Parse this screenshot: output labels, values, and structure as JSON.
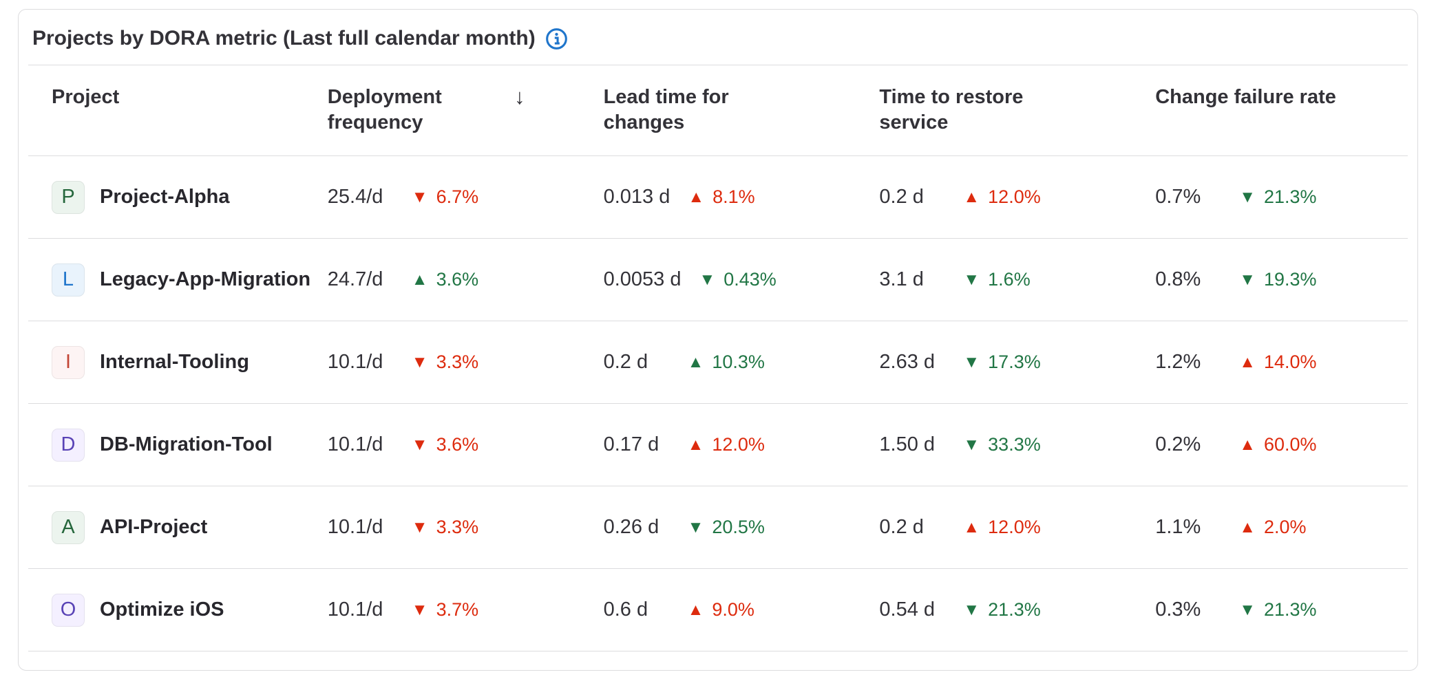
{
  "colors": {
    "good": "#217645",
    "bad": "#dd2b0e",
    "info": "#1f75cb"
  },
  "icons": {
    "up": "▲",
    "down": "▼",
    "sort_desc": "↓",
    "info": "circled-i"
  },
  "card": {
    "title": "Projects by DORA metric (Last full calendar month)"
  },
  "table": {
    "headers": [
      {
        "label": "Project",
        "sortable": true
      },
      {
        "label": "Deployment frequency",
        "sortable": true,
        "sorted": "desc"
      },
      {
        "label": "Lead time for changes",
        "sortable": true
      },
      {
        "label": "Time to restore service",
        "sortable": true
      },
      {
        "label": "Change failure rate",
        "sortable": true
      }
    ],
    "rows": [
      {
        "project": {
          "initial": "P",
          "name": "Project-Alpha",
          "avatar_bg": "#ecf4ee",
          "avatar_fg": "#24663b"
        },
        "metrics": [
          {
            "value": "25.4/d",
            "arrow": "down",
            "change": "6.7%",
            "sentiment": "bad"
          },
          {
            "value": "0.013 d",
            "arrow": "up",
            "change": "8.1%",
            "sentiment": "bad"
          },
          {
            "value": "0.2 d",
            "arrow": "up",
            "change": "12.0%",
            "sentiment": "bad"
          },
          {
            "value": "0.7%",
            "arrow": "down",
            "change": "21.3%",
            "sentiment": "good"
          }
        ]
      },
      {
        "project": {
          "initial": "L",
          "name": "Legacy-App-Migration",
          "avatar_bg": "#e9f3fc",
          "avatar_fg": "#1f75cb"
        },
        "metrics": [
          {
            "value": "24.7/d",
            "arrow": "up",
            "change": "3.6%",
            "sentiment": "good"
          },
          {
            "value": "0.0053 d",
            "arrow": "down",
            "change": "0.43%",
            "sentiment": "good"
          },
          {
            "value": "3.1 d",
            "arrow": "down",
            "change": "1.6%",
            "sentiment": "good"
          },
          {
            "value": "0.8%",
            "arrow": "down",
            "change": "19.3%",
            "sentiment": "good"
          }
        ]
      },
      {
        "project": {
          "initial": "I",
          "name": "Internal-Tooling",
          "avatar_bg": "#fdf4f4",
          "avatar_fg": "#c24535"
        },
        "metrics": [
          {
            "value": "10.1/d",
            "arrow": "down",
            "change": "3.3%",
            "sentiment": "bad"
          },
          {
            "value": "0.2 d",
            "arrow": "up",
            "change": "10.3%",
            "sentiment": "good"
          },
          {
            "value": "2.63 d",
            "arrow": "down",
            "change": "17.3%",
            "sentiment": "good"
          },
          {
            "value": "1.2%",
            "arrow": "up",
            "change": "14.0%",
            "sentiment": "bad"
          }
        ]
      },
      {
        "project": {
          "initial": "D",
          "name": "DB-Migration-Tool",
          "avatar_bg": "#f4f0ff",
          "avatar_fg": "#5943b6"
        },
        "metrics": [
          {
            "value": "10.1/d",
            "arrow": "down",
            "change": "3.6%",
            "sentiment": "bad"
          },
          {
            "value": "0.17 d",
            "arrow": "up",
            "change": "12.0%",
            "sentiment": "bad"
          },
          {
            "value": "1.50 d",
            "arrow": "down",
            "change": "33.3%",
            "sentiment": "good"
          },
          {
            "value": "0.2%",
            "arrow": "up",
            "change": "60.0%",
            "sentiment": "bad"
          }
        ]
      },
      {
        "project": {
          "initial": "A",
          "name": "API-Project",
          "avatar_bg": "#ecf4ee",
          "avatar_fg": "#24663b"
        },
        "metrics": [
          {
            "value": "10.1/d",
            "arrow": "down",
            "change": "3.3%",
            "sentiment": "bad"
          },
          {
            "value": "0.26 d",
            "arrow": "down",
            "change": "20.5%",
            "sentiment": "good"
          },
          {
            "value": "0.2 d",
            "arrow": "up",
            "change": "12.0%",
            "sentiment": "bad"
          },
          {
            "value": "1.1%",
            "arrow": "up",
            "change": "2.0%",
            "sentiment": "bad"
          }
        ]
      },
      {
        "project": {
          "initial": "O",
          "name": "Optimize iOS",
          "avatar_bg": "#f4f0ff",
          "avatar_fg": "#5943b6"
        },
        "metrics": [
          {
            "value": "10.1/d",
            "arrow": "down",
            "change": "3.7%",
            "sentiment": "bad"
          },
          {
            "value": "0.6 d",
            "arrow": "up",
            "change": "9.0%",
            "sentiment": "bad"
          },
          {
            "value": "0.54 d",
            "arrow": "down",
            "change": "21.3%",
            "sentiment": "good"
          },
          {
            "value": "0.3%",
            "arrow": "down",
            "change": "21.3%",
            "sentiment": "good"
          }
        ]
      }
    ]
  }
}
